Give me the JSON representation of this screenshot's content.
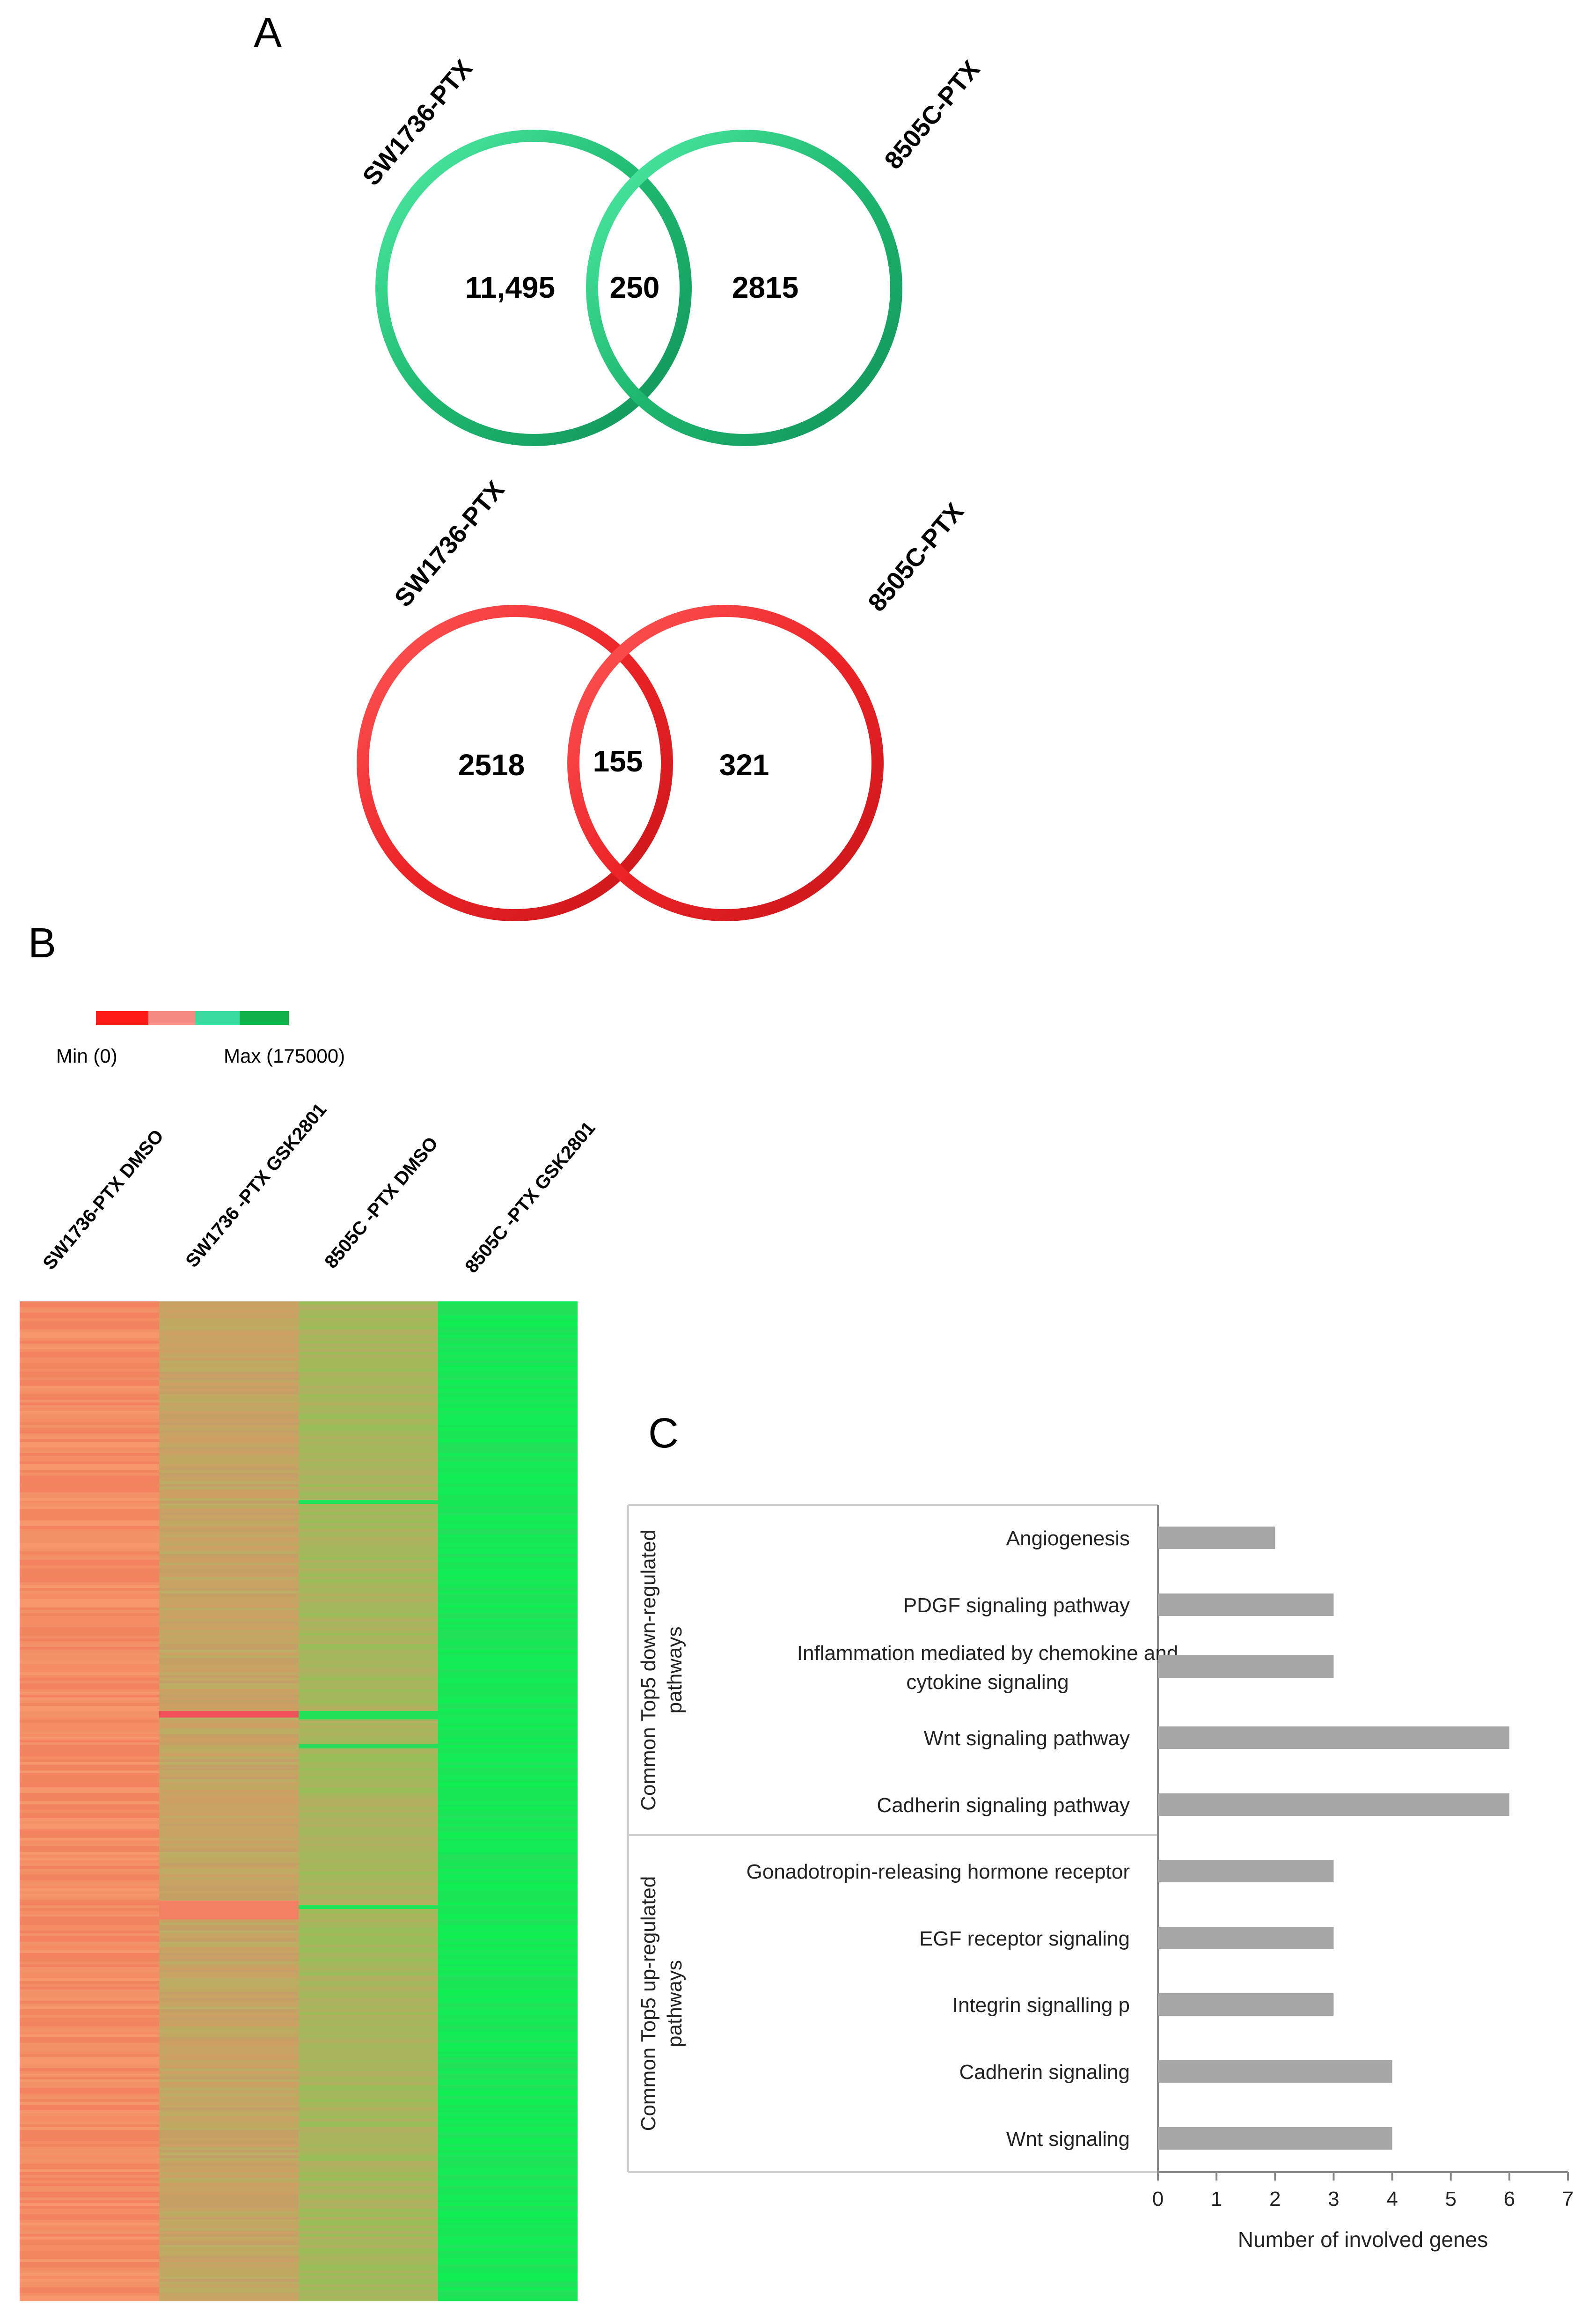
{
  "panel_labels": {
    "a": "A",
    "b": "B",
    "c": "C"
  },
  "venn": [
    {
      "color": "#1db36b",
      "highlight": "#4ef0a8",
      "left_label": "SW1736-PTX",
      "right_label": "8505C-PTX",
      "left_only": "11,495",
      "overlap": "250",
      "right_only": "2815"
    },
    {
      "color": "#e8242a",
      "highlight": "#ff6b6b",
      "left_label": "SW1736-PTX",
      "right_label": "8505C-PTX",
      "left_only": "2518",
      "overlap": "155",
      "right_only": "321"
    }
  ],
  "heatmap": {
    "legend_min": "Min (0)",
    "legend_max": "Max (175000)",
    "legend_colors": [
      "#ff1a1a",
      "#f58c84",
      "#3ad9a0",
      "#12b04a"
    ],
    "columns": [
      "SW1736-PTX DMSO",
      "SW1736 -PTX GSK2801",
      "8505C -PTX DMSO",
      "8505C -PTX GSK2801"
    ],
    "base_colors": [
      "#f48c64",
      "#c8a464",
      "#aab45e",
      "#16ea58"
    ]
  },
  "chart_data": {
    "type": "bar",
    "orientation": "horizontal",
    "title": "",
    "xlabel": "Number of involved genes",
    "xlim": [
      0,
      7
    ],
    "xticks": [
      "0",
      "1",
      "2",
      "3",
      "4",
      "5",
      "6",
      "7"
    ],
    "bar_color": "#a6a6a6",
    "groups": [
      {
        "name": "Common Top5 down-regulated pathways",
        "categories": [
          [
            "Angiogenesis"
          ],
          [
            "PDGF signaling pathway"
          ],
          [
            "Inflammation mediated by chemokine and",
            "cytokine signaling"
          ],
          [
            "Wnt signaling pathway"
          ],
          [
            "Cadherin signaling pathway"
          ]
        ],
        "values": [
          2,
          3,
          3,
          6,
          6
        ]
      },
      {
        "name": "Common Top5 up-regulated pathways",
        "categories": [
          [
            "Gonadotropin-releasing hormone receptor"
          ],
          [
            "EGF receptor signaling"
          ],
          [
            "Integrin signalling p"
          ],
          [
            "Cadherin signaling"
          ],
          [
            "Wnt signaling"
          ]
        ],
        "values": [
          3,
          3,
          3,
          4,
          4
        ]
      }
    ]
  }
}
